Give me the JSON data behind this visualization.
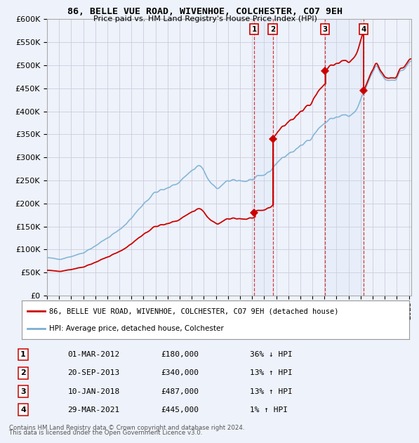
{
  "title": "86, BELLE VUE ROAD, WIVENHOE, COLCHESTER, CO7 9EH",
  "subtitle": "Price paid vs. HM Land Registry's House Price Index (HPI)",
  "ylim": [
    0,
    600000
  ],
  "yticks": [
    0,
    50000,
    100000,
    150000,
    200000,
    250000,
    300000,
    350000,
    400000,
    450000,
    500000,
    550000,
    600000
  ],
  "ytick_labels": [
    "£0",
    "£50K",
    "£100K",
    "£150K",
    "£200K",
    "£250K",
    "£300K",
    "£350K",
    "£400K",
    "£450K",
    "£500K",
    "£550K",
    "£600K"
  ],
  "xlim_start": 1995.3,
  "xlim_end": 2025.2,
  "background_color": "#eef2fa",
  "plot_bg_color": "#eef2fa",
  "grid_color": "#ccccdd",
  "transactions": [
    {
      "num": 1,
      "date": "01-MAR-2012",
      "price": 180000,
      "year": 2012.17,
      "label": "36% ↓ HPI"
    },
    {
      "num": 2,
      "date": "20-SEP-2013",
      "price": 340000,
      "year": 2013.72,
      "label": "13% ↑ HPI"
    },
    {
      "num": 3,
      "date": "10-JAN-2018",
      "price": 487000,
      "year": 2018.03,
      "label": "13% ↑ HPI"
    },
    {
      "num": 4,
      "date": "29-MAR-2021",
      "price": 445000,
      "year": 2021.24,
      "label": "1% ↑ HPI"
    }
  ],
  "legend_line1": "86, BELLE VUE ROAD, WIVENHOE, COLCHESTER, CO7 9EH (detached house)",
  "legend_line2": "HPI: Average price, detached house, Colchester",
  "footer1": "Contains HM Land Registry data © Crown copyright and database right 2024.",
  "footer2": "This data is licensed under the Open Government Licence v3.0.",
  "hpi_color": "#7ab0d4",
  "price_color": "#cc0000",
  "marker_color": "#cc0000",
  "vline_color": "#cc0000",
  "shade_color": "#ccddf5"
}
